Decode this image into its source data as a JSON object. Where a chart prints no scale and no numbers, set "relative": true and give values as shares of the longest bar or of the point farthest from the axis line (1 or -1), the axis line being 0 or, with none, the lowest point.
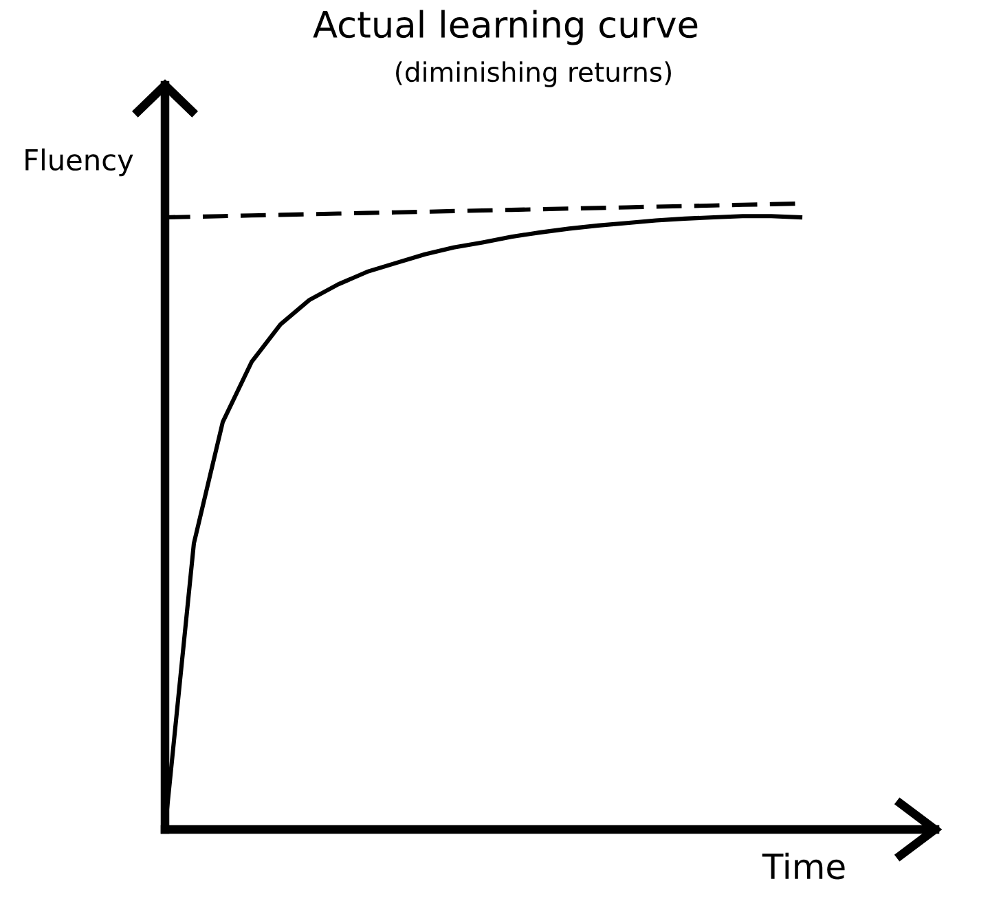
{
  "chart_data": {
    "type": "line",
    "title": "Actual learning curve",
    "subtitle": "(diminishing returns)",
    "xlabel": "Time",
    "ylabel": "Fluency",
    "relative": true,
    "categories": [
      null,
      null,
      null,
      null,
      null,
      null,
      null,
      null,
      null,
      null,
      null,
      null,
      null,
      null,
      null,
      null,
      null,
      null,
      null,
      null,
      null,
      null,
      null
    ],
    "series": [
      {
        "color": "#000000",
        "line_style": "solid",
        "values": [
          0,
          0.457,
          0.651,
          0.747,
          0.807,
          0.846,
          0.871,
          0.891,
          0.905,
          0.919,
          0.93,
          0.938,
          0.947,
          0.954,
          0.96,
          0.965,
          0.969,
          0.973,
          0.976,
          0.978,
          0.98,
          0.98,
          0.978
        ]
      },
      {
        "color": "#000000",
        "line_style": "dashed",
        "values": [
          0.978,
          0.979,
          0.98,
          0.981,
          0.982,
          0.983,
          0.984,
          0.985,
          0.986,
          0.987,
          0.988,
          0.989,
          0.99,
          0.991,
          0.992,
          0.993,
          0.994,
          0.995,
          0.996,
          0.997,
          0.998,
          0.999,
          1.0
        ]
      }
    ],
    "legend": false,
    "marker": "none"
  }
}
